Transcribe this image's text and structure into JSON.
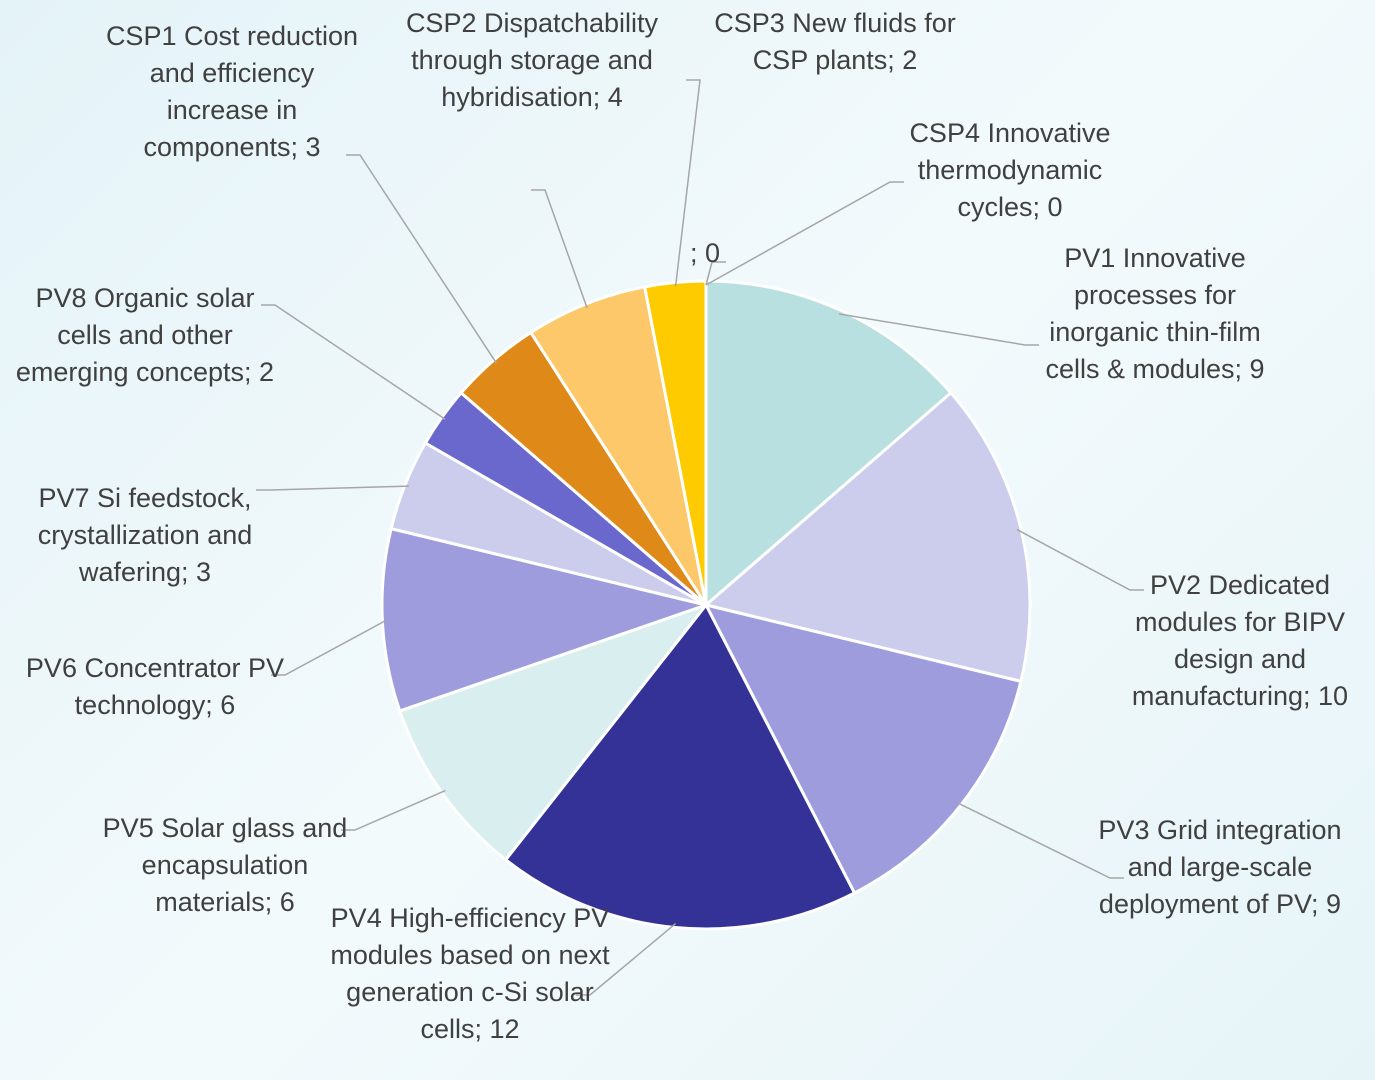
{
  "chart_data": {
    "type": "pie",
    "categories": [
      "PV1 Innovative processes for inorganic thin-film cells & modules",
      "PV2 Dedicated modules for BIPV design and manufacturing",
      "PV3 Grid integration and large-scale deployment of PV",
      "PV4 High-efficiency PV modules based on next generation c-Si solar cells",
      "PV5 Solar glass and encapsulation materials",
      "PV6 Concentrator PV technology",
      "PV7 Si feedstock, crystallization and wafering",
      "PV8 Organic solar cells and other emerging concepts",
      "CSP1 Cost reduction and efficiency increase in components",
      "CSP2 Dispatchability through storage and hybridisation",
      "CSP3 New fluids for CSP plants",
      "CSP4 Innovative thermodynamic cycles",
      null
    ],
    "values": [
      9,
      10,
      9,
      12,
      6,
      6,
      3,
      2,
      3,
      4,
      2,
      0,
      0
    ],
    "value_labels": [
      "; 9",
      "; 10",
      "; 9",
      "; 12",
      "; 6",
      "; 6",
      "; 3",
      "; 2",
      "; 3",
      "; 4",
      "; 2",
      "; 0",
      "; 0"
    ],
    "colors": [
      "#b8e0e0",
      "#cccced",
      "#9e9cdd",
      "#343297",
      "#d9eeee",
      "#9e9cdd",
      "#cccced",
      "#6a68cc",
      "#df8a18",
      "#fdc86a",
      "#fdcb00",
      "#fdc86a",
      "#df8a18"
    ]
  }
}
